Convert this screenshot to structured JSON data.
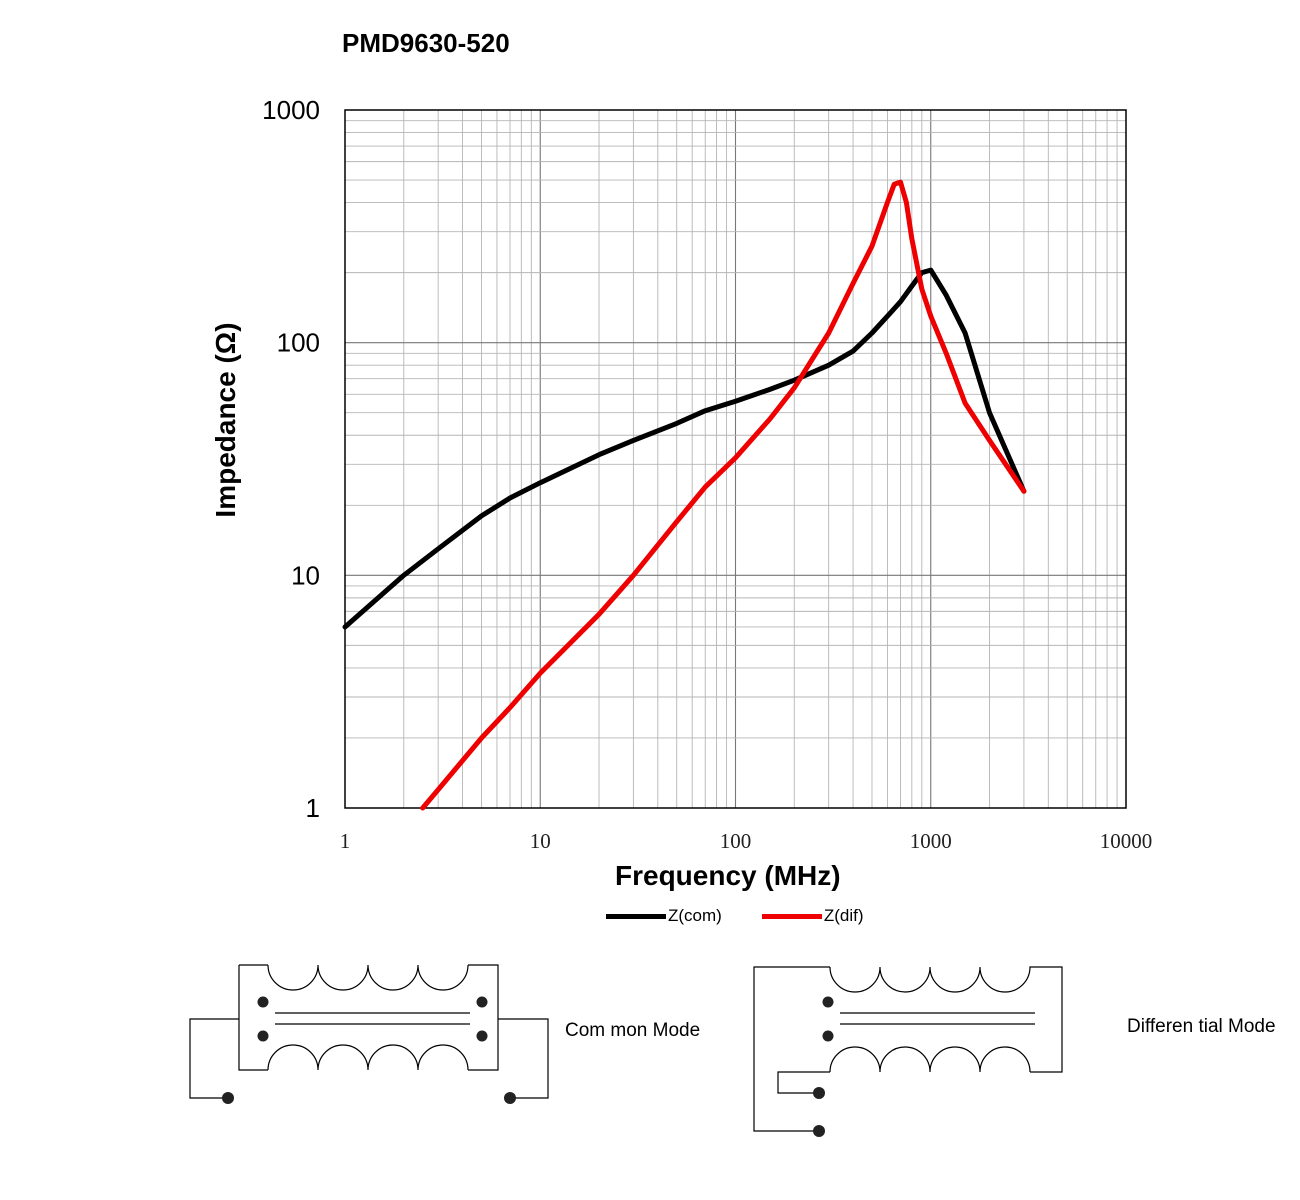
{
  "chart_data": {
    "type": "line",
    "title": "PMD9630-520",
    "xlabel": "Frequency (MHz)",
    "ylabel": "Impedance (Ω)",
    "xscale": "log",
    "yscale": "log",
    "xlim": [
      1,
      10000
    ],
    "ylim": [
      1,
      1000
    ],
    "xticks": [
      "1",
      "10",
      "100",
      "1000",
      "10000"
    ],
    "yticks": [
      "1",
      "10",
      "100",
      "1000"
    ],
    "grid": true,
    "legend_position": "bottom",
    "series": [
      {
        "name": "Z(com)",
        "color": "#000000",
        "x": [
          1,
          2,
          3,
          5,
          7,
          10,
          20,
          30,
          50,
          70,
          100,
          150,
          200,
          300,
          400,
          500,
          600,
          700,
          800,
          900,
          1000,
          1200,
          1500,
          2000,
          3000
        ],
        "y": [
          6,
          10,
          13,
          18,
          21.5,
          25,
          33,
          38,
          45,
          51,
          56,
          63,
          69,
          80,
          92,
          110,
          130,
          150,
          175,
          200,
          205,
          160,
          110,
          50,
          23
        ]
      },
      {
        "name": "Z(dif)",
        "color": "#ee0000",
        "x": [
          2.5,
          3,
          5,
          7,
          10,
          20,
          30,
          50,
          70,
          100,
          150,
          200,
          300,
          400,
          500,
          600,
          650,
          700,
          750,
          800,
          900,
          1000,
          1200,
          1500,
          2000,
          3000
        ],
        "y": [
          1,
          1.2,
          2,
          2.7,
          3.8,
          6.8,
          10,
          17,
          24,
          32,
          47,
          64,
          110,
          180,
          260,
          400,
          480,
          490,
          400,
          280,
          170,
          130,
          90,
          55,
          38,
          23
        ]
      }
    ]
  },
  "diagrams": {
    "common_mode_label": "Com mon Mode",
    "differential_mode_label": "Differen tial Mode"
  }
}
